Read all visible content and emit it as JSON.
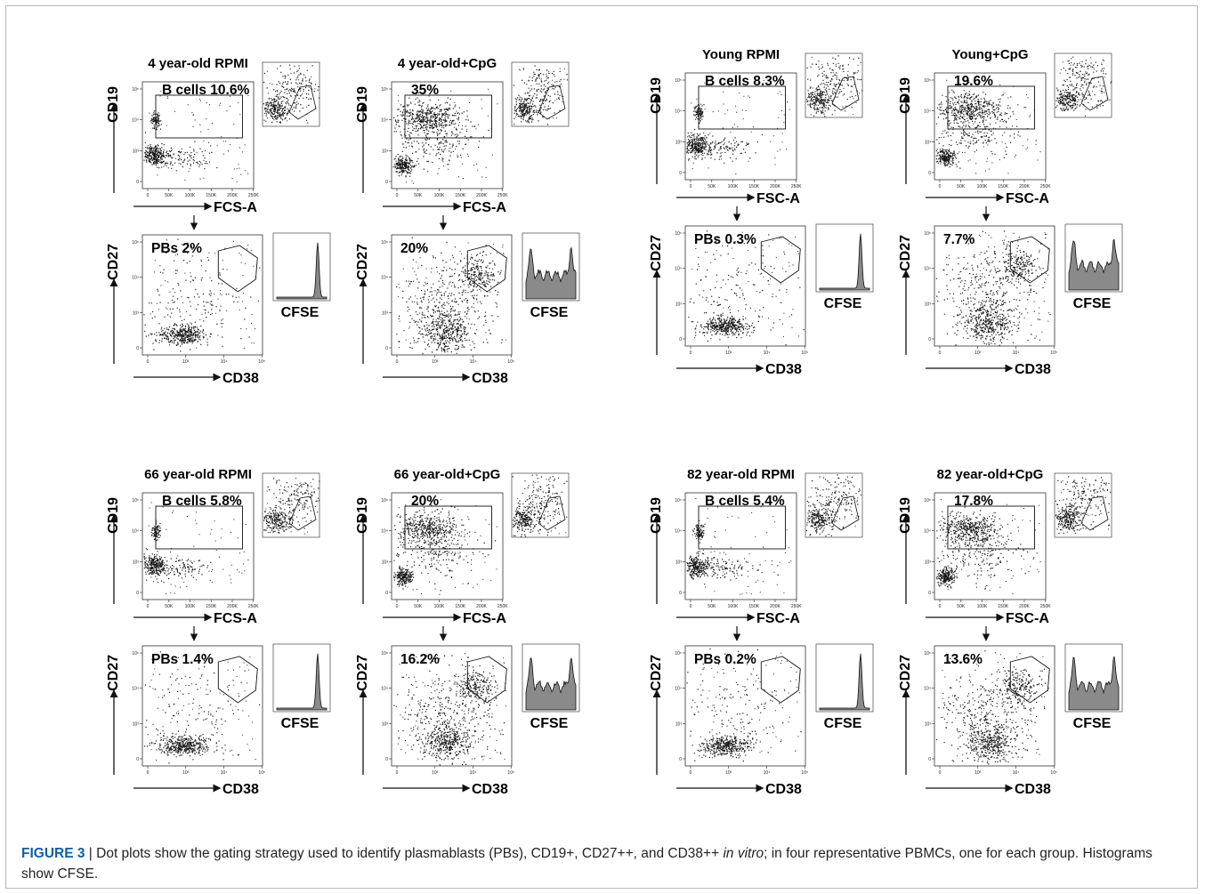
{
  "caption": {
    "figure_label": "FIGURE 3",
    "separator": " | ",
    "text_before_italic": "Dot plots show the gating strategy used to identify plasmablasts (PBs), CD19+, CD27++, and CD38++ ",
    "italic_text": "in vitro",
    "text_after_italic": "; in four representative PBMCs, one for each group. Histograms show CFSE."
  },
  "chart_data": [
    {
      "type": "scatter",
      "title": "4 year-old RPMI",
      "gate_label": "B cells 10.6%",
      "gate_value_percent": 10.6,
      "pb_label": "PBs 2%",
      "pb_value_percent": 2,
      "top_xlabel": "FCS-A",
      "top_ylabel": "CD19",
      "bottom_xlabel": "CD38",
      "bottom_ylabel": "CD27",
      "histogram_label": "CFSE",
      "lin_ticks": [
        "0",
        "50K",
        "100K",
        "150K",
        "200K",
        "250K"
      ],
      "log_ticks": [
        "0",
        "10³",
        "10⁴",
        "10⁵"
      ]
    },
    {
      "type": "scatter",
      "title": "4 year-old+CpG",
      "gate_label": "35%",
      "gate_value_percent": 35,
      "pb_label": "20%",
      "pb_value_percent": 20,
      "top_xlabel": "FCS-A",
      "top_ylabel": "CD19",
      "bottom_xlabel": "CD38",
      "bottom_ylabel": "CD27",
      "histogram_label": "CFSE",
      "lin_ticks": [
        "0",
        "50K",
        "100K",
        "150K",
        "200K",
        "250K"
      ],
      "log_ticks": [
        "0",
        "10³",
        "10⁴",
        "10⁵"
      ]
    },
    {
      "type": "scatter",
      "title": "Young RPMI",
      "gate_label": "B cells 8.3%",
      "gate_value_percent": 8.3,
      "pb_label": "PBs 0.3%",
      "pb_value_percent": 0.3,
      "top_xlabel": "FSC-A",
      "top_ylabel": "CD19",
      "bottom_xlabel": "CD38",
      "bottom_ylabel": "CD27",
      "histogram_label": "CFSE",
      "lin_ticks": [
        "0",
        "50K",
        "100K",
        "150K",
        "200K",
        "250K"
      ],
      "log_ticks": [
        "0",
        "10³",
        "10⁴",
        "10⁵"
      ]
    },
    {
      "type": "scatter",
      "title": "Young+CpG",
      "gate_label": "19.6%",
      "gate_value_percent": 19.6,
      "pb_label": "7.7%",
      "pb_value_percent": 7.7,
      "top_xlabel": "FSC-A",
      "top_ylabel": "CD19",
      "bottom_xlabel": "CD38",
      "bottom_ylabel": "CD27",
      "histogram_label": "CFSE",
      "lin_ticks": [
        "0",
        "50K",
        "100K",
        "150K",
        "200K",
        "250K"
      ],
      "log_ticks": [
        "0",
        "10³",
        "10⁴",
        "10⁵"
      ]
    },
    {
      "type": "scatter",
      "title": "66 year-old RPMI",
      "gate_label": "B cells 5.8%",
      "gate_value_percent": 5.8,
      "pb_label": "PBs 1.4%",
      "pb_value_percent": 1.4,
      "top_xlabel": "FCS-A",
      "top_ylabel": "CD19",
      "bottom_xlabel": "CD38",
      "bottom_ylabel": "CD27",
      "histogram_label": "CFSE",
      "lin_ticks": [
        "0",
        "50K",
        "100K",
        "150K",
        "200K",
        "250K"
      ],
      "log_ticks": [
        "0",
        "10³",
        "10⁴",
        "10⁵"
      ]
    },
    {
      "type": "scatter",
      "title": "66 year-old+CpG",
      "gate_label": "20%",
      "gate_value_percent": 20,
      "pb_label": "16.2%",
      "pb_value_percent": 16.2,
      "top_xlabel": "FCS-A",
      "top_ylabel": "CD19",
      "bottom_xlabel": "CD38",
      "bottom_ylabel": "CD27",
      "histogram_label": "CFSE",
      "lin_ticks": [
        "0",
        "50K",
        "100K",
        "150K",
        "200K",
        "250K"
      ],
      "log_ticks": [
        "0",
        "10³",
        "10⁴",
        "10⁵"
      ]
    },
    {
      "type": "scatter",
      "title": "82 year-old RPMI",
      "gate_label": "B cells 5.4%",
      "gate_value_percent": 5.4,
      "pb_label": "PBs 0.2%",
      "pb_value_percent": 0.2,
      "top_xlabel": "FSC-A",
      "top_ylabel": "CD19",
      "bottom_xlabel": "CD38",
      "bottom_ylabel": "CD27",
      "histogram_label": "CFSE",
      "lin_ticks": [
        "0",
        "50K",
        "100K",
        "150K",
        "200K",
        "250K"
      ],
      "log_ticks": [
        "0",
        "10³",
        "10⁴",
        "10⁵"
      ]
    },
    {
      "type": "scatter",
      "title": "82 year-old+CpG",
      "gate_label": "17.8%",
      "gate_value_percent": 17.8,
      "pb_label": "13.6%",
      "pb_value_percent": 13.6,
      "top_xlabel": "FSC-A",
      "top_ylabel": "CD19",
      "bottom_xlabel": "CD38",
      "bottom_ylabel": "CD27",
      "histogram_label": "CFSE",
      "lin_ticks": [
        "0",
        "50K",
        "100K",
        "150K",
        "200K",
        "250K"
      ],
      "log_ticks": [
        "0",
        "10³",
        "10⁴",
        "10⁵"
      ]
    }
  ]
}
